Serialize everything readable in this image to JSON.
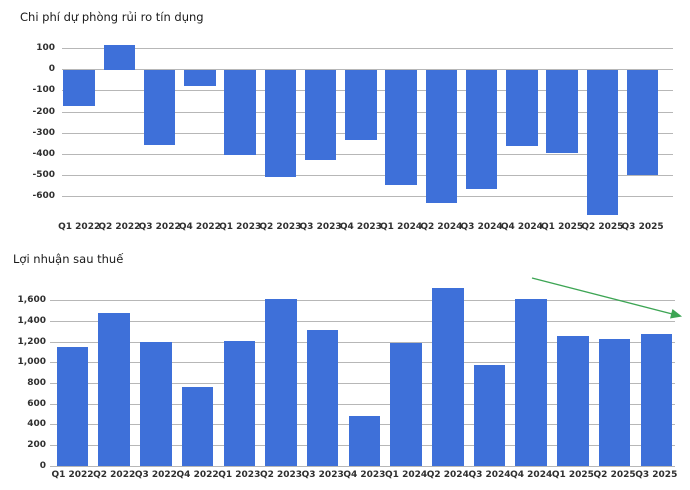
{
  "chart_data": [
    {
      "type": "bar",
      "title": "Chi phí dự phòng rủi ro tín dụng",
      "categories": [
        "Q1 2022",
        "Q2 2022",
        "Q3 2022",
        "Q4 2022",
        "Q1 2023",
        "Q2 2023",
        "Q3 2023",
        "Q4 2023",
        "Q1 2024",
        "Q2 2024",
        "Q3 2024",
        "Q4 2024",
        "Q1 2025",
        "Q2 2025",
        "Q3 2025"
      ],
      "values": [
        -170,
        115,
        -355,
        -75,
        -405,
        -505,
        -425,
        -330,
        -545,
        -630,
        -565,
        -360,
        -395,
        -685,
        -495
      ],
      "bar_color": "#3e70d9",
      "xlabel": "",
      "ylabel": "",
      "ylim": [
        -700,
        140
      ],
      "grid": true,
      "legend": "none",
      "yticks": [
        {
          "value": 100,
          "label": "100"
        },
        {
          "value": 0,
          "label": "0"
        },
        {
          "value": -100,
          "label": "-100"
        },
        {
          "value": -200,
          "label": "-200"
        },
        {
          "value": -300,
          "label": "-300"
        },
        {
          "value": -400,
          "label": "-400"
        },
        {
          "value": -500,
          "label": "-500"
        },
        {
          "value": -600,
          "label": "-600"
        }
      ]
    },
    {
      "type": "bar",
      "title": "Lợi nhuận sau thuế",
      "categories": [
        "Q1 2022",
        "Q2 2022",
        "Q3 2022",
        "Q4 2022",
        "Q1 2023",
        "Q2 2023",
        "Q3 2023",
        "Q4 2023",
        "Q1 2024",
        "Q2 2024",
        "Q3 2024",
        "Q4 2024",
        "Q1 2025",
        "Q2 2025",
        "Q3 2025"
      ],
      "values": [
        1150,
        1480,
        1200,
        770,
        1215,
        1615,
        1320,
        485,
        1195,
        1725,
        975,
        1615,
        1260,
        1235,
        1275
      ],
      "bar_color": "#3e70d9",
      "xlabel": "",
      "ylabel": "",
      "ylim": [
        0,
        1880
      ],
      "grid": true,
      "legend": "none",
      "yticks": [
        {
          "value": 1600,
          "label": "1,600"
        },
        {
          "value": 1400,
          "label": "1,400"
        },
        {
          "value": 1200,
          "label": "1,200"
        },
        {
          "value": 1000,
          "label": "1,000"
        },
        {
          "value": 800,
          "label": "800"
        },
        {
          "value": 600,
          "label": "600"
        },
        {
          "value": 400,
          "label": "400"
        },
        {
          "value": 200,
          "label": "200"
        },
        {
          "value": 0,
          "label": "0"
        }
      ],
      "annotation": {
        "type": "trend-arrow-down",
        "description": "green downward trend arrow over last quarters",
        "color": "#3da554"
      }
    }
  ]
}
